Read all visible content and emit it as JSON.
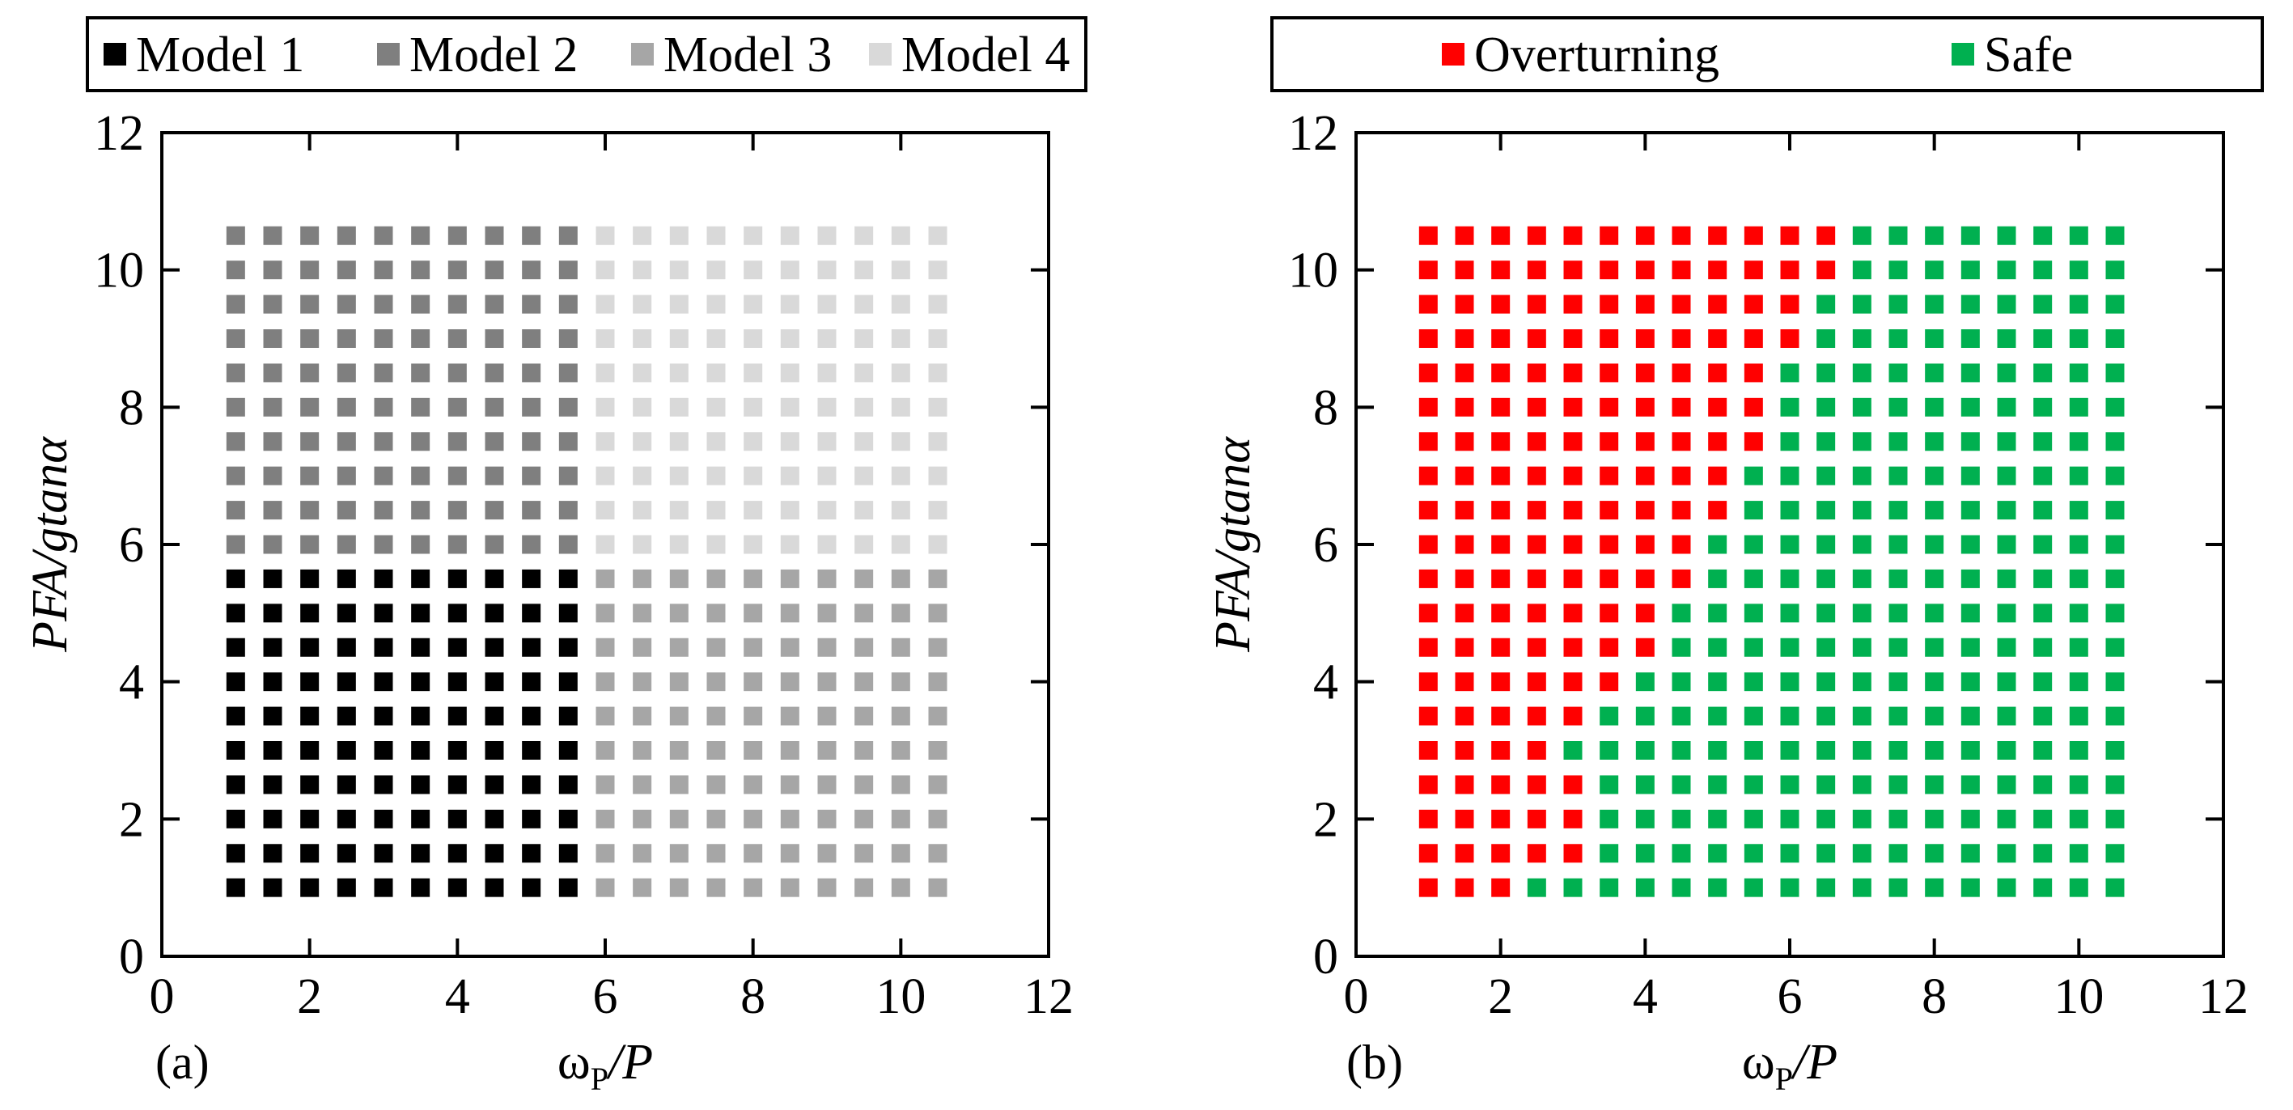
{
  "chart_data": [
    {
      "panel_label": "(a)",
      "type": "scatter",
      "marker": "square",
      "xlabel_main": "ω",
      "xlabel_sub": "P",
      "xlabel_tail": "/P",
      "ylabel": "PFA/gtanα",
      "xlim": [
        0,
        12
      ],
      "ylim": [
        0,
        12
      ],
      "xticks": [
        0,
        2,
        4,
        6,
        8,
        10,
        12
      ],
      "yticks": [
        0,
        2,
        4,
        6,
        8,
        10,
        12
      ],
      "x_grid": [
        1.0,
        1.5,
        2.0,
        2.5,
        3.0,
        3.5,
        4.0,
        4.5,
        5.0,
        5.5,
        6.0,
        6.5,
        7.0,
        7.5,
        8.0,
        8.5,
        9.0,
        9.5,
        10.0,
        10.5
      ],
      "y_grid": [
        1.0,
        1.5,
        2.0,
        2.5,
        3.0,
        3.5,
        4.0,
        4.5,
        5.0,
        5.5,
        6.0,
        6.5,
        7.0,
        7.5,
        8.0,
        8.5,
        9.0,
        9.5,
        10.0,
        10.5
      ],
      "legend": [
        {
          "name": "Model 1",
          "color": "#000000"
        },
        {
          "name": "Model 2",
          "color": "#7f7f7f"
        },
        {
          "name": "Model 3",
          "color": "#a6a6a6"
        },
        {
          "name": "Model 4",
          "color": "#d9d9d9"
        }
      ],
      "regions": [
        {
          "series": "Model 1",
          "x_range": [
            1.0,
            5.5
          ],
          "y_range": [
            1.0,
            5.5
          ]
        },
        {
          "series": "Model 2",
          "x_range": [
            1.0,
            5.5
          ],
          "y_range": [
            6.0,
            10.5
          ]
        },
        {
          "series": "Model 3",
          "x_range": [
            6.0,
            10.5
          ],
          "y_range": [
            1.0,
            5.5
          ]
        },
        {
          "series": "Model 4",
          "x_range": [
            6.0,
            10.5
          ],
          "y_range": [
            6.0,
            10.5
          ]
        }
      ]
    },
    {
      "panel_label": "(b)",
      "type": "scatter",
      "marker": "square",
      "xlabel_main": "ω",
      "xlabel_sub": "P",
      "xlabel_tail": "/P",
      "ylabel": "PFA/gtanα",
      "xlim": [
        0,
        12
      ],
      "ylim": [
        0,
        12
      ],
      "xticks": [
        0,
        2,
        4,
        6,
        8,
        10,
        12
      ],
      "yticks": [
        0,
        2,
        4,
        6,
        8,
        10,
        12
      ],
      "x_grid": [
        1.0,
        1.5,
        2.0,
        2.5,
        3.0,
        3.5,
        4.0,
        4.5,
        5.0,
        5.5,
        6.0,
        6.5,
        7.0,
        7.5,
        8.0,
        8.5,
        9.0,
        9.5,
        10.0,
        10.5
      ],
      "y_grid": [
        1.0,
        1.5,
        2.0,
        2.5,
        3.0,
        3.5,
        4.0,
        4.5,
        5.0,
        5.5,
        6.0,
        6.5,
        7.0,
        7.5,
        8.0,
        8.5,
        9.0,
        9.5,
        10.0,
        10.5
      ],
      "legend": [
        {
          "name": "Overturning",
          "color": "#ff0000"
        },
        {
          "name": "Safe",
          "color": "#00b050"
        }
      ],
      "overturning_boundary": [
        {
          "y": 1.0,
          "max_x_overturning": 2.0
        },
        {
          "y": 1.5,
          "max_x_overturning": 3.0
        },
        {
          "y": 2.0,
          "max_x_overturning": 3.0
        },
        {
          "y": 2.5,
          "max_x_overturning": 3.0
        },
        {
          "y": 3.0,
          "max_x_overturning": 2.5
        },
        {
          "y": 3.5,
          "max_x_overturning": 3.0
        },
        {
          "y": 4.0,
          "max_x_overturning": 3.5
        },
        {
          "y": 4.5,
          "max_x_overturning": 4.0
        },
        {
          "y": 5.0,
          "max_x_overturning": 4.0
        },
        {
          "y": 5.5,
          "max_x_overturning": 4.5
        },
        {
          "y": 6.0,
          "max_x_overturning": 4.5
        },
        {
          "y": 6.5,
          "max_x_overturning": 5.0
        },
        {
          "y": 7.0,
          "max_x_overturning": 5.0
        },
        {
          "y": 7.5,
          "max_x_overturning": 5.5
        },
        {
          "y": 8.0,
          "max_x_overturning": 5.5
        },
        {
          "y": 8.5,
          "max_x_overturning": 5.5
        },
        {
          "y": 9.0,
          "max_x_overturning": 6.0
        },
        {
          "y": 9.5,
          "max_x_overturning": 6.0
        },
        {
          "y": 10.0,
          "max_x_overturning": 6.5
        },
        {
          "y": 10.5,
          "max_x_overturning": 6.5
        }
      ]
    }
  ]
}
